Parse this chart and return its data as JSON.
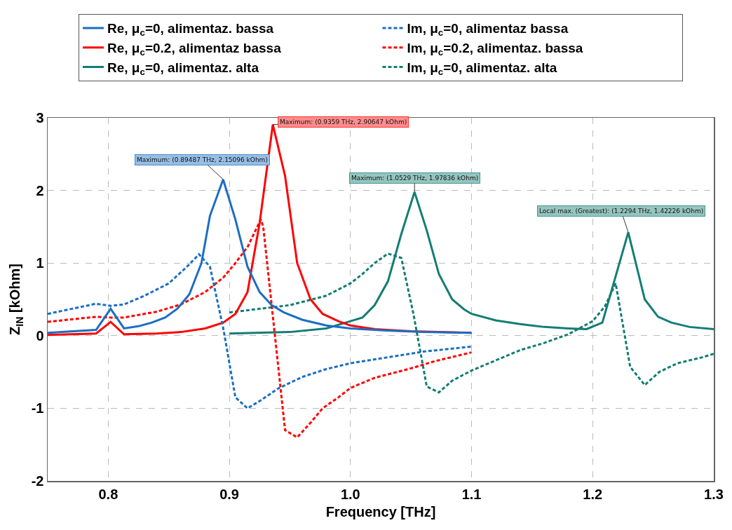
{
  "chart_data": {
    "type": "line",
    "xlabel": "Frequency [THz]",
    "ylabel": "Z$_{IN}$ [kOhm]",
    "xlim": [
      0.75,
      1.3
    ],
    "xticks": [
      0.8,
      0.9,
      {
        "value": 1,
        "label": "1.0"
      },
      1.1,
      1.2,
      1.3
    ],
    "ylim": [
      -2,
      3
    ],
    "yticks": [
      -2,
      -1,
      0,
      1,
      2,
      3
    ],
    "grid": true,
    "legend": "top",
    "marker": "none",
    "series": [
      {
        "name": "Re, μ$_{c}$=0, alimentaz. bassa",
        "color": "#1b6ec2",
        "line_style": "solid",
        "x": [
          0.75,
          0.79,
          0.802,
          0.813,
          0.825,
          0.836,
          0.847,
          0.857,
          0.867,
          0.877,
          0.884,
          0.89487,
          0.905,
          0.915,
          0.925,
          0.935,
          0.945,
          0.96,
          0.98,
          1.0,
          1.03,
          1.06,
          1.1
        ],
        "values": [
          0.04,
          0.08,
          0.37,
          0.1,
          0.13,
          0.18,
          0.25,
          0.37,
          0.57,
          1.0,
          1.65,
          2.15096,
          1.6,
          0.95,
          0.6,
          0.42,
          0.32,
          0.22,
          0.14,
          0.1,
          0.07,
          0.05,
          0.04
        ]
      },
      {
        "name": "Im, μ$_{c}$=0, alimentaz bassa",
        "color": "#1b6ec2",
        "line_style": "dashed",
        "x": [
          0.75,
          0.79,
          0.802,
          0.813,
          0.83,
          0.85,
          0.865,
          0.875,
          0.884,
          0.895,
          0.905,
          0.915,
          0.925,
          0.94,
          0.96,
          0.98,
          1.0,
          1.03,
          1.06,
          1.1
        ],
        "values": [
          0.3,
          0.44,
          0.41,
          0.43,
          0.55,
          0.72,
          0.95,
          1.12,
          0.95,
          0.1,
          -0.85,
          -1.0,
          -0.9,
          -0.73,
          -0.57,
          -0.46,
          -0.38,
          -0.3,
          -0.22,
          -0.15
        ]
      },
      {
        "name": "Re, μ$_{c}$=0.2, alimentaz bassa",
        "color": "#ff0000",
        "line_style": "solid",
        "x": [
          0.75,
          0.79,
          0.802,
          0.813,
          0.84,
          0.86,
          0.88,
          0.895,
          0.905,
          0.915,
          0.925,
          0.9359,
          0.946,
          0.956,
          0.967,
          0.977,
          0.99,
          1.0,
          1.02,
          1.05,
          1.1
        ],
        "values": [
          0.01,
          0.03,
          0.19,
          0.02,
          0.03,
          0.05,
          0.1,
          0.18,
          0.3,
          0.6,
          1.55,
          2.90647,
          2.2,
          1.0,
          0.5,
          0.3,
          0.2,
          0.14,
          0.09,
          0.06,
          0.04
        ]
      },
      {
        "name": "Im, μ$_{c}$=0.2, alimentaz. bassa",
        "color": "#ff0000",
        "line_style": "dashed",
        "x": [
          0.75,
          0.79,
          0.802,
          0.813,
          0.84,
          0.86,
          0.88,
          0.895,
          0.905,
          0.915,
          0.926,
          0.928,
          0.946,
          0.956,
          0.967,
          0.977,
          0.99,
          1.0,
          1.02,
          1.05,
          1.07,
          1.1
        ],
        "values": [
          0.19,
          0.26,
          0.25,
          0.25,
          0.33,
          0.43,
          0.6,
          0.8,
          1.0,
          1.22,
          1.6,
          1.5,
          -1.3,
          -1.4,
          -1.2,
          -1.0,
          -0.85,
          -0.72,
          -0.58,
          -0.45,
          -0.35,
          -0.23
        ]
      },
      {
        "name": "Re, μ$_{c}$=0, alimentaz. alta",
        "color": "#137d74",
        "line_style": "solid",
        "x": [
          0.9,
          0.95,
          0.98,
          1.0,
          1.01,
          1.02,
          1.031,
          1.042,
          1.0529,
          1.063,
          1.073,
          1.084,
          1.094,
          1.1,
          1.12,
          1.14,
          1.16,
          1.18,
          1.195,
          1.208,
          1.2294,
          1.243,
          1.254,
          1.265,
          1.28,
          1.3
        ],
        "values": [
          0.03,
          0.05,
          0.1,
          0.2,
          0.25,
          0.42,
          0.75,
          1.4,
          1.97836,
          1.45,
          0.85,
          0.5,
          0.36,
          0.3,
          0.21,
          0.16,
          0.12,
          0.1,
          0.09,
          0.18,
          1.42226,
          0.5,
          0.26,
          0.18,
          0.12,
          0.09
        ]
      },
      {
        "name": "Im, μ$_{c}$=0, alimentaz. alta",
        "color": "#137d74",
        "line_style": "dashed",
        "x": [
          0.9,
          0.95,
          0.98,
          1.0,
          1.01,
          1.02,
          1.031,
          1.042,
          1.052,
          1.063,
          1.073,
          1.084,
          1.1,
          1.12,
          1.14,
          1.16,
          1.18,
          1.2,
          1.21,
          1.219,
          1.231,
          1.243,
          1.255,
          1.27,
          1.29,
          1.3
        ],
        "values": [
          0.32,
          0.42,
          0.55,
          0.72,
          0.85,
          1.0,
          1.13,
          1.07,
          0.3,
          -0.7,
          -0.78,
          -0.62,
          -0.48,
          -0.34,
          -0.2,
          -0.1,
          0.02,
          0.2,
          0.4,
          0.72,
          -0.43,
          -0.68,
          -0.5,
          -0.38,
          -0.3,
          -0.25
        ]
      }
    ],
    "annotations": [
      {
        "text": "Maximum: (0.89487 THz, 2.15096 kOhm)",
        "x": 0.89487,
        "y": 2.15096
      },
      {
        "text": "Maximum: (0.9359 THz, 2.90647 kOhm)",
        "x": 0.9359,
        "y": 2.90647
      },
      {
        "text": "Maximum: (1.0529 THz, 1.97836 kOhm)",
        "x": 1.0529,
        "y": 1.97836
      },
      {
        "text": "Local max. (Greatest): (1.2294 THz, 1.42226 kOhm)",
        "x": 1.2294,
        "y": 1.42226
      }
    ]
  }
}
